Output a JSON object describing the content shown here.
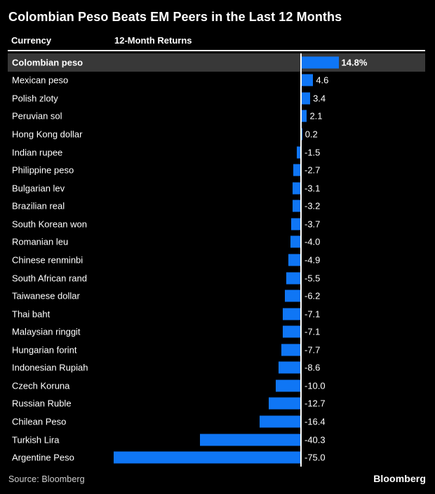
{
  "page": {
    "title": "Colombian Peso Beats EM Peers in the Last 12 Months",
    "column_headers": {
      "currency": "Currency",
      "returns": "12-Month Returns"
    },
    "source_note": "Source: Bloomberg",
    "brand_logo_text": "Bloomberg"
  },
  "colors": {
    "background": "#000000",
    "bar_blue": "#0F76F5",
    "highlight_row_bg": "#383838",
    "zero_line": "#FFFFFF",
    "text_primary": "#FFFFFF",
    "source_text": "#CFCFCF"
  },
  "chart_data": {
    "type": "bar",
    "orientation": "horizontal",
    "title": "Colombian Peso Beats EM Peers in the Last 12 Months",
    "xlabel": "12-Month Returns",
    "ylabel": "Currency",
    "xlim": [
      -80,
      20
    ],
    "grid": false,
    "legend": "none",
    "highlighted_category": "Colombian peso",
    "categories": [
      "Colombian peso",
      "Mexican peso",
      "Polish zloty",
      "Peruvian sol",
      "Hong Kong dollar",
      "Indian rupee",
      "Philippine peso",
      "Bulgarian lev",
      "Brazilian real",
      "South Korean won",
      "Romanian leu",
      "Chinese renminbi",
      "South African rand",
      "Taiwanese dollar",
      "Thai baht",
      "Malaysian ringgit",
      "Hungarian forint",
      "Indonesian Rupiah",
      "Czech Koruna",
      "Russian Ruble",
      "Chilean Peso",
      "Turkish Lira",
      "Argentine Peso"
    ],
    "values": [
      14.8,
      4.6,
      3.4,
      2.1,
      0.2,
      -1.5,
      -2.7,
      -3.1,
      -3.2,
      -3.7,
      -4.0,
      -4.9,
      -5.5,
      -6.2,
      -7.1,
      -7.1,
      -7.7,
      -8.6,
      -10.0,
      -12.7,
      -16.4,
      -40.3,
      -75.0
    ],
    "value_labels": [
      "14.8%",
      "4.6",
      "3.4",
      "2.1",
      "0.2",
      "-1.5",
      "-2.7",
      "-3.1",
      "-3.2",
      "-3.7",
      "-4.0",
      "-4.9",
      "-5.5",
      "-6.2",
      "-7.1",
      "-7.1",
      "-7.7",
      "-8.6",
      "-10.0",
      "-12.7",
      "-16.4",
      "-40.3",
      "-75.0"
    ]
  }
}
